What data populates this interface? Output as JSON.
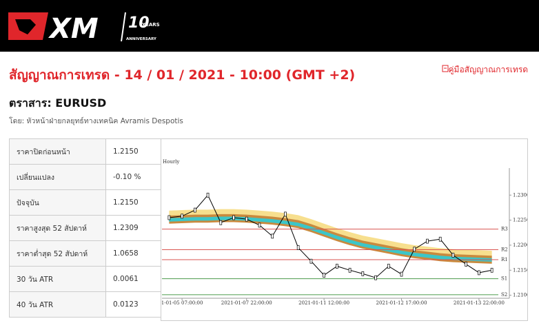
{
  "header": {
    "logo": "XM",
    "badge": "10",
    "badge_sub": "YEARS",
    "badge_caption": "ANNIVERSARY"
  },
  "title": "สัญญาณการเทรด - 14 / 01 / 2021 - 10:00 (GMT +2)",
  "guide_link": "คู่มือสัญญาณการเทรด",
  "instrument": "ตราสาร: EURUSD",
  "author": "โดย: หัวหน้าฝ่ายกลยุทธ์ทางเทคนิค Avramis Despotis",
  "table": {
    "rows": [
      [
        "ราคาปิดก่อนหน้า",
        "1.2150"
      ],
      [
        "เปลี่ยนแปลง",
        "-0.10 %"
      ],
      [
        "ปัจจุบัน",
        "1.2150"
      ],
      [
        "ราคาสูงสุด 52 สัปดาห์",
        "1.2309"
      ],
      [
        "ราคาต่ำสุด 52 สัปดาห์",
        "1.0658"
      ],
      [
        "30 วัน ATR",
        "0.0061"
      ],
      [
        "40 วัน ATR",
        "0.0123"
      ]
    ]
  },
  "chart_data": {
    "type": "line",
    "subtitle": "Hourly",
    "categories": [
      null,
      "1-01-05 07:00:00",
      null,
      null,
      null,
      null,
      "2021-01-07 22:00:00",
      null,
      null,
      null,
      null,
      null,
      "2021-01-11 12:00:00",
      null,
      null,
      null,
      null,
      null,
      "2021-01-12 17:00:00",
      null,
      null,
      null,
      null,
      null,
      "2021-01-13 22:00:00",
      null
    ],
    "series": [
      {
        "color": "#000000",
        "values": [
          1.2255,
          1.2258,
          1.227,
          1.23,
          1.2245,
          1.2255,
          1.2252,
          1.224,
          1.2218,
          1.2262,
          1.2195,
          1.2168,
          1.214,
          1.2158,
          1.215,
          1.2143,
          1.2135,
          1.2158,
          1.2142,
          1.2192,
          1.2208,
          1.2212,
          1.218,
          1.2162,
          1.2145,
          1.215
        ]
      }
    ],
    "bands": [
      {
        "color": "#f7df8e",
        "upper": [
          1.2269,
          1.227,
          1.2271,
          1.2271,
          1.2272,
          1.2272,
          1.2271,
          1.2269,
          1.2267,
          1.2264,
          1.226,
          1.2252,
          1.2243,
          1.2234,
          1.2226,
          1.2219,
          1.2214,
          1.2209,
          1.2204,
          1.22,
          1.2197,
          1.2194,
          1.2192,
          1.2191,
          1.219,
          1.2189
        ],
        "lower": [
          1.2257,
          1.2258,
          1.2259,
          1.2259,
          1.226,
          1.226,
          1.2259,
          1.2257,
          1.2255,
          1.2252,
          1.2248,
          1.224,
          1.2231,
          1.2222,
          1.2214,
          1.2207,
          1.2202,
          1.2197,
          1.2192,
          1.2188,
          1.2185,
          1.2182,
          1.218,
          1.2179,
          1.2178,
          1.2177
        ]
      },
      {
        "color": "#c98a3e",
        "upper": [
          1.2259,
          1.226,
          1.2261,
          1.2261,
          1.2262,
          1.2262,
          1.2261,
          1.2259,
          1.2257,
          1.2254,
          1.225,
          1.2242,
          1.2233,
          1.2224,
          1.2216,
          1.2209,
          1.2204,
          1.2199,
          1.2194,
          1.219,
          1.2187,
          1.2184,
          1.2182,
          1.2181,
          1.218,
          1.2179
        ],
        "lower": [
          1.2243,
          1.2244,
          1.2245,
          1.2245,
          1.2246,
          1.2246,
          1.2245,
          1.2243,
          1.2241,
          1.2238,
          1.2234,
          1.2226,
          1.2217,
          1.2208,
          1.22,
          1.2193,
          1.2188,
          1.2183,
          1.2178,
          1.2174,
          1.2171,
          1.2168,
          1.2166,
          1.2165,
          1.2164,
          1.2163
        ]
      },
      {
        "color": "#3cc6c8",
        "upper": [
          1.2254,
          1.2255,
          1.2256,
          1.2256,
          1.2257,
          1.2257,
          1.2256,
          1.2254,
          1.2252,
          1.2249,
          1.2245,
          1.2237,
          1.2228,
          1.2219,
          1.2211,
          1.2204,
          1.2199,
          1.2194,
          1.2189,
          1.2185,
          1.2182,
          1.2179,
          1.2177,
          1.2176,
          1.2175,
          1.2174
        ],
        "lower": [
          1.2247,
          1.2248,
          1.2249,
          1.2249,
          1.225,
          1.225,
          1.2249,
          1.2247,
          1.2245,
          1.2242,
          1.2238,
          1.223,
          1.2221,
          1.2212,
          1.2204,
          1.2197,
          1.2192,
          1.2187,
          1.2182,
          1.2178,
          1.2175,
          1.2172,
          1.217,
          1.2169,
          1.2168,
          1.2167
        ]
      }
    ],
    "levels": [
      {
        "name": "R3",
        "value": 1.2232,
        "color": "#d9534f"
      },
      {
        "name": "R2",
        "value": 1.2191,
        "color": "#d9534f"
      },
      {
        "name": "R1",
        "value": 1.2171,
        "color": "#d9534f"
      },
      {
        "name": "S1",
        "value": 1.2133,
        "color": "#4a9a4a"
      },
      {
        "name": "S2",
        "value": 1.2101,
        "color": "#4a9a4a"
      }
    ],
    "ylim": [
      1.2094,
      1.2354
    ],
    "yticks": [
      {
        "value": 1.23,
        "label": "1.2300"
      },
      {
        "value": 1.225,
        "label": "1.2250"
      },
      {
        "value": 1.22,
        "label": "1.2200"
      },
      {
        "value": 1.215,
        "label": "1.2150"
      },
      {
        "value": 1.21,
        "label": "1.2100"
      }
    ]
  }
}
